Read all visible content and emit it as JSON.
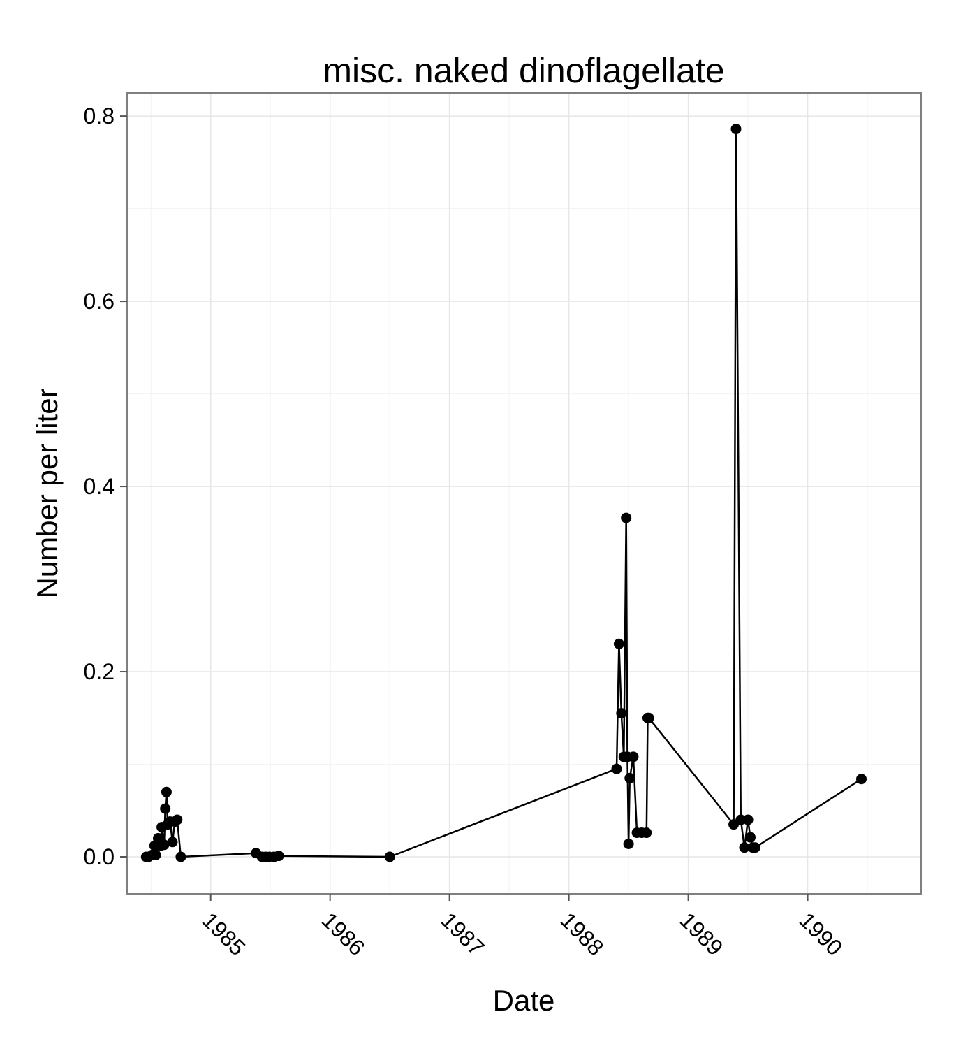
{
  "chart_data": {
    "type": "line",
    "title": "misc. naked dinoflagellate",
    "xlabel": "Date",
    "ylabel": "Number per liter",
    "xlim": [
      1984.3,
      1990.95
    ],
    "ylim": [
      -0.04,
      0.825
    ],
    "x_ticks": [
      1985,
      1986,
      1987,
      1988,
      1989,
      1990
    ],
    "x_tick_labels": [
      "1985",
      "1986",
      "1987",
      "1988",
      "1989",
      "1990"
    ],
    "y_ticks": [
      0.0,
      0.2,
      0.4,
      0.6,
      0.8
    ],
    "y_tick_labels": [
      "0.0",
      "0.2",
      "0.4",
      "0.6",
      "0.8"
    ],
    "grid": true,
    "markers": true,
    "series": [
      {
        "name": "misc. naked dinoflagellate",
        "x": [
          1984.46,
          1984.48,
          1984.51,
          1984.53,
          1984.54,
          1984.56,
          1984.58,
          1984.59,
          1984.61,
          1984.62,
          1984.63,
          1984.64,
          1984.66,
          1984.68,
          1984.7,
          1984.72,
          1984.75,
          1985.38,
          1985.43,
          1985.46,
          1985.49,
          1985.53,
          1985.57,
          1986.5,
          1988.4,
          1988.42,
          1988.44,
          1988.46,
          1988.48,
          1988.49,
          1988.5,
          1988.51,
          1988.54,
          1988.57,
          1988.61,
          1988.65,
          1988.66,
          1988.67,
          1989.38,
          1989.4,
          1989.44,
          1989.47,
          1989.5,
          1989.52,
          1989.54,
          1989.56,
          1990.45
        ],
        "y": [
          0.0,
          0.0,
          0.002,
          0.012,
          0.002,
          0.02,
          0.012,
          0.032,
          0.013,
          0.052,
          0.07,
          0.035,
          0.038,
          0.016,
          0.038,
          0.04,
          0.0,
          0.004,
          0.0,
          0.0,
          0.0,
          0.0,
          0.001,
          0.0,
          0.095,
          0.23,
          0.155,
          0.108,
          0.366,
          0.108,
          0.014,
          0.085,
          0.108,
          0.026,
          0.026,
          0.026,
          0.15,
          0.15,
          0.035,
          0.786,
          0.04,
          0.01,
          0.04,
          0.021,
          0.01,
          0.01,
          0.084
        ]
      }
    ]
  }
}
